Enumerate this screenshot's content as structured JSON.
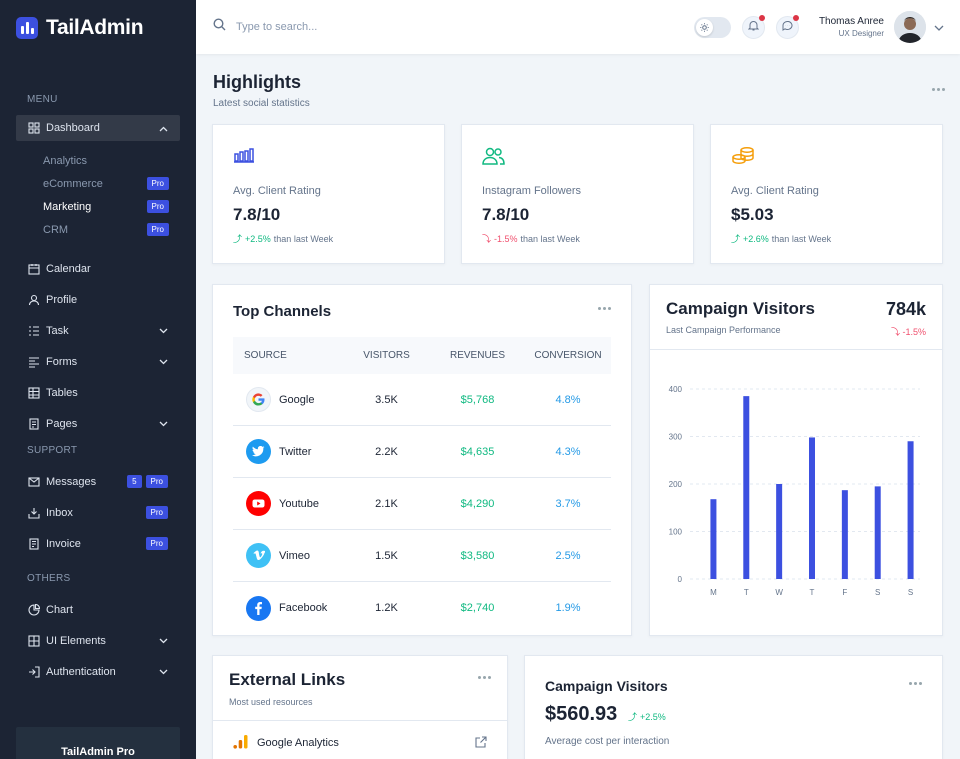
{
  "brand": {
    "name": "TailAdmin"
  },
  "sidebar": {
    "groups": {
      "menu": "MENU",
      "support": "SUPPORT",
      "others": "OTHERS"
    },
    "dashboard": {
      "label": "Dashboard",
      "sub": [
        {
          "label": "Analytics"
        },
        {
          "label": "eCommerce",
          "badge": "Pro"
        },
        {
          "label": "Marketing",
          "badge": "Pro"
        },
        {
          "label": "CRM",
          "badge": "Pro"
        }
      ]
    },
    "menu_items": [
      {
        "label": "Calendar",
        "icon": "calendar-icon"
      },
      {
        "label": "Profile",
        "icon": "user-icon"
      },
      {
        "label": "Task",
        "icon": "task-icon"
      },
      {
        "label": "Forms",
        "icon": "forms-icon"
      },
      {
        "label": "Tables",
        "icon": "table-icon"
      },
      {
        "label": "Pages",
        "icon": "pages-icon"
      }
    ],
    "support_items": [
      {
        "label": "Messages",
        "count": "5",
        "badge": "Pro",
        "icon": "message-icon"
      },
      {
        "label": "Inbox",
        "badge": "Pro",
        "icon": "inbox-icon"
      },
      {
        "label": "Invoice",
        "badge": "Pro",
        "icon": "invoice-icon"
      }
    ],
    "others_items": [
      {
        "label": "Chart",
        "icon": "chart-icon"
      },
      {
        "label": "UI Elements",
        "icon": "ui-elements-icon"
      },
      {
        "label": "Authentication",
        "icon": "auth-icon"
      }
    ],
    "promo_title": "TailAdmin Pro"
  },
  "header": {
    "search_placeholder": "Type to search...",
    "user_name": "Thomas Anree",
    "user_role": "UX Designer"
  },
  "highlights": {
    "title": "Highlights",
    "subtitle": "Latest social statistics",
    "cards": [
      {
        "label": "Avg. Client Rating",
        "value": "7.8/10",
        "trend": "+2.5%",
        "trend_dir": "up",
        "suffix": "than last Week",
        "icon": "bar-chart-icon",
        "color": "#3c50e0"
      },
      {
        "label": "Instagram Followers",
        "value": "7.8/10",
        "trend": "-1.5%",
        "trend_dir": "down",
        "suffix": "than last Week",
        "icon": "users-icon",
        "color": "#10b981"
      },
      {
        "label": "Avg. Client Rating",
        "value": "$5.03",
        "trend": "+2.6%",
        "trend_dir": "up",
        "suffix": "than last Week",
        "icon": "coins-icon",
        "color": "#f59e0b"
      }
    ]
  },
  "top_channels": {
    "title": "Top Channels",
    "columns": [
      "SOURCE",
      "VISITORS",
      "REVENUES",
      "CONVERSION"
    ],
    "rows": [
      {
        "source": "Google",
        "visitors": "3.5K",
        "revenue": "$5,768",
        "conversion": "4.8%"
      },
      {
        "source": "Twitter",
        "visitors": "2.2K",
        "revenue": "$4,635",
        "conversion": "4.3%"
      },
      {
        "source": "Youtube",
        "visitors": "2.1K",
        "revenue": "$4,290",
        "conversion": "3.7%"
      },
      {
        "source": "Vimeo",
        "visitors": "1.5K",
        "revenue": "$3,580",
        "conversion": "2.5%"
      },
      {
        "source": "Facebook",
        "visitors": "1.2K",
        "revenue": "$2,740",
        "conversion": "1.9%"
      }
    ]
  },
  "campaign_visitors": {
    "title": "Campaign Visitors",
    "subtitle": "Last Campaign Performance",
    "value": "784k",
    "trend": "-1.5%"
  },
  "chart_data": {
    "type": "bar",
    "categories": [
      "M",
      "T",
      "W",
      "T",
      "F",
      "S",
      "S"
    ],
    "values": [
      168,
      385,
      200,
      298,
      187,
      195,
      290
    ],
    "ylim": [
      0,
      400
    ],
    "yticks": [
      0,
      100,
      200,
      300,
      400
    ],
    "grid": true,
    "color": "#3c50e0"
  },
  "external_links": {
    "title": "External Links",
    "subtitle": "Most used resources",
    "items": [
      {
        "label": "Google Analytics"
      }
    ]
  },
  "campaign_cost": {
    "title": "Campaign Visitors",
    "value": "$560.93",
    "trend": "+2.5%",
    "subtitle": "Average cost per interaction"
  }
}
